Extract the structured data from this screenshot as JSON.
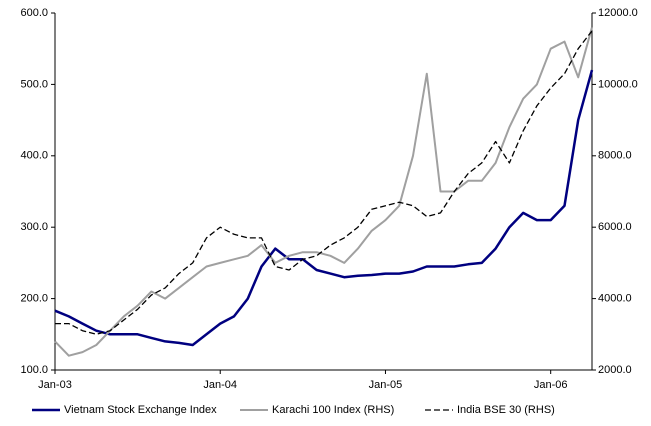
{
  "chart_data": {
    "type": "line",
    "x": [
      "2003-01",
      "2003-02",
      "2003-03",
      "2003-04",
      "2003-05",
      "2003-06",
      "2003-07",
      "2003-08",
      "2003-09",
      "2003-10",
      "2003-11",
      "2003-12",
      "2004-01",
      "2004-02",
      "2004-03",
      "2004-04",
      "2004-05",
      "2004-06",
      "2004-07",
      "2004-08",
      "2004-09",
      "2004-10",
      "2004-11",
      "2004-12",
      "2005-01",
      "2005-02",
      "2005-03",
      "2005-04",
      "2005-05",
      "2005-06",
      "2005-07",
      "2005-08",
      "2005-09",
      "2005-10",
      "2005-11",
      "2005-12",
      "2006-01",
      "2006-02",
      "2006-03",
      "2006-04"
    ],
    "xlim": [
      "2003-01",
      "2006-04"
    ],
    "xticks": [
      {
        "value": "2003-01",
        "label": "Jan-03"
      },
      {
        "value": "2004-01",
        "label": "Jan-04"
      },
      {
        "value": "2005-01",
        "label": "Jan-05"
      },
      {
        "value": "2006-01",
        "label": "Jan-06"
      }
    ],
    "ylim": [
      100,
      600
    ],
    "yticks": [
      {
        "value": 100,
        "label": "100.0"
      },
      {
        "value": 200,
        "label": "200.0"
      },
      {
        "value": 300,
        "label": "300.0"
      },
      {
        "value": 400,
        "label": "400.0"
      },
      {
        "value": 500,
        "label": "500.0"
      },
      {
        "value": 600,
        "label": "600.0"
      }
    ],
    "y2lim": [
      2000,
      12000
    ],
    "y2ticks": [
      {
        "value": 2000,
        "label": "2000.0"
      },
      {
        "value": 4000,
        "label": "4000.0"
      },
      {
        "value": 6000,
        "label": "6000.0"
      },
      {
        "value": 8000,
        "label": "8000.0"
      },
      {
        "value": 10000,
        "label": "10000.0"
      },
      {
        "value": 12000,
        "label": "12000.0"
      }
    ],
    "grid": false,
    "legend": "bottom",
    "series": [
      {
        "name": "Vietnam Stock Exchange Index",
        "color": "#000080",
        "values": [
          183,
          175,
          165,
          155,
          150,
          150,
          150,
          145,
          140,
          138,
          135,
          150,
          165,
          175,
          200,
          245,
          270,
          255,
          255,
          240,
          235,
          230,
          232,
          233,
          235,
          235,
          238,
          245,
          245,
          245,
          248,
          250,
          270,
          300,
          320,
          310,
          310,
          330,
          450,
          520
        ]
      },
      {
        "name": "Karachi 100 Index (RHS)",
        "color": "#a0a0a0",
        "axis": "y2",
        "values": [
          2800,
          2400,
          2500,
          2700,
          3100,
          3500,
          3800,
          4200,
          4000,
          4300,
          4600,
          4900,
          5000,
          5100,
          5200,
          5500,
          5000,
          5200,
          5300,
          5300,
          5200,
          5000,
          5400,
          5900,
          6200,
          6600,
          8000,
          10300,
          7000,
          7000,
          7300,
          7300,
          7800,
          8800,
          9600,
          10000,
          11000,
          11200,
          10200,
          11600
        ]
      },
      {
        "name": "India BSE 30 (RHS)",
        "color": "#000000",
        "axis": "y2",
        "dash": true,
        "values": [
          3300,
          3300,
          3100,
          3000,
          3100,
          3400,
          3700,
          4100,
          4300,
          4700,
          5000,
          5700,
          6000,
          5800,
          5700,
          5700,
          4900,
          4800,
          5100,
          5200,
          5500,
          5700,
          6000,
          6500,
          6600,
          6700,
          6600,
          6300,
          6400,
          7000,
          7500,
          7800,
          8400,
          7800,
          8700,
          9400,
          9900,
          10300,
          11000,
          11500
        ]
      }
    ]
  }
}
